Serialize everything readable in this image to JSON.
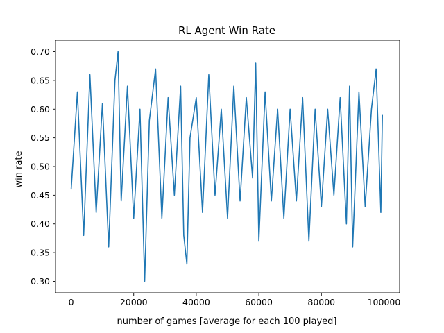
{
  "chart_data": {
    "type": "line",
    "title": "RL Agent Win Rate",
    "xlabel": "number of games [average for each 100 played]",
    "ylabel": "win rate",
    "xlim": [
      -5000,
      105000
    ],
    "ylim": [
      0.28,
      0.72
    ],
    "xticks": [
      0,
      20000,
      40000,
      60000,
      80000,
      100000
    ],
    "xtick_labels": [
      "0",
      "20000",
      "40000",
      "60000",
      "80000",
      "100000"
    ],
    "yticks": [
      0.3,
      0.35,
      0.4,
      0.45,
      0.5,
      0.55,
      0.6,
      0.65,
      0.7
    ],
    "ytick_labels": [
      "0.30",
      "0.35",
      "0.40",
      "0.45",
      "0.50",
      "0.55",
      "0.60",
      "0.65",
      "0.70"
    ],
    "grid": false,
    "legend": "none",
    "series": [
      {
        "color": "#1f77b4",
        "x": [
          0,
          2000,
          4000,
          6000,
          8000,
          10000,
          12000,
          14000,
          15000,
          16000,
          18000,
          20000,
          22000,
          23500,
          25000,
          27000,
          29000,
          31000,
          33000,
          35000,
          36000,
          37000,
          38000,
          40000,
          42000,
          44000,
          46000,
          48000,
          50000,
          52000,
          54000,
          56000,
          58000,
          59000,
          60000,
          62000,
          64000,
          66000,
          68000,
          70000,
          72000,
          74000,
          76000,
          78000,
          80000,
          82000,
          84000,
          86000,
          88000,
          89000,
          90000,
          92000,
          94000,
          96000,
          97500,
          99000,
          99500
        ],
        "y": [
          0.46,
          0.63,
          0.38,
          0.66,
          0.42,
          0.61,
          0.36,
          0.65,
          0.7,
          0.44,
          0.64,
          0.41,
          0.6,
          0.3,
          0.58,
          0.67,
          0.41,
          0.62,
          0.45,
          0.64,
          0.38,
          0.33,
          0.55,
          0.62,
          0.42,
          0.66,
          0.45,
          0.6,
          0.41,
          0.64,
          0.44,
          0.62,
          0.48,
          0.68,
          0.37,
          0.63,
          0.44,
          0.6,
          0.41,
          0.6,
          0.44,
          0.62,
          0.37,
          0.6,
          0.43,
          0.6,
          0.45,
          0.62,
          0.4,
          0.64,
          0.36,
          0.63,
          0.43,
          0.6,
          0.67,
          0.42,
          0.59
        ]
      }
    ]
  }
}
